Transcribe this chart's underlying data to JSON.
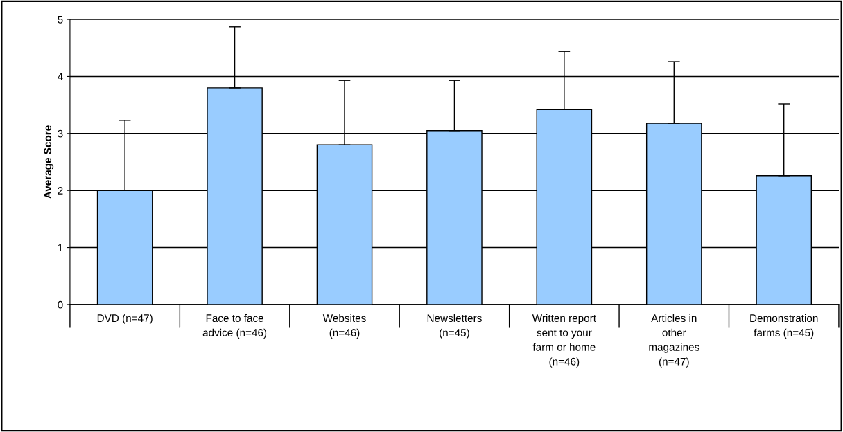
{
  "chart_data": {
    "type": "bar",
    "ylabel": "Average Score",
    "categories": [
      "DVD (n=47)",
      "Face to face\nadvice (n=46)",
      "Websites\n(n=46)",
      "Newsletters\n(n=45)",
      "Written report\nsent to your\nfarm or home\n(n=46)",
      "Articles in\nother\nmagazines\n(n=47)",
      "Demonstration\nfarms (n=45)"
    ],
    "values": [
      2.0,
      3.8,
      2.8,
      3.05,
      3.42,
      3.18,
      2.26
    ],
    "errors": [
      [
        2.0,
        3.23
      ],
      [
        3.8,
        4.87
      ],
      [
        2.8,
        3.93
      ],
      [
        3.05,
        3.93
      ],
      [
        3.42,
        4.44
      ],
      [
        3.18,
        4.26
      ],
      [
        2.26,
        3.52
      ]
    ],
    "color": "#99ccff",
    "ylim": [
      0,
      5
    ],
    "yticks": [
      0,
      1,
      2,
      3,
      4,
      5
    ],
    "grid": "y",
    "legend": false
  }
}
